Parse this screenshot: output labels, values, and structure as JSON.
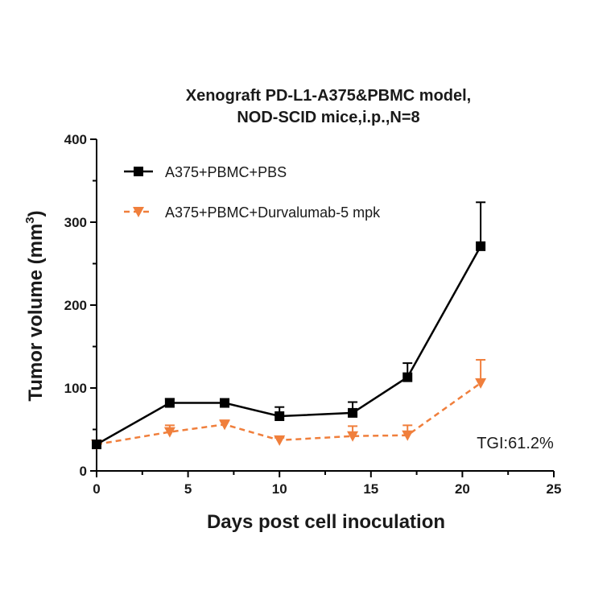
{
  "chart_data": {
    "type": "line",
    "title_line1": "Xenograft PD-L1-A375&PBMC model,",
    "title_line2": "NOD-SCID mice,i.p.,N=8",
    "xlabel": "Days post cell inoculation",
    "ylabel_main": "Tumor volume (mm",
    "ylabel_sup": "3",
    "ylabel_close": ")",
    "xlim": [
      0,
      25
    ],
    "ylim": [
      0,
      400
    ],
    "x_ticks": [
      0,
      5,
      10,
      15,
      20,
      25
    ],
    "y_ticks": [
      0,
      100,
      200,
      300,
      400
    ],
    "grid": false,
    "legend_position": "top-left",
    "series": [
      {
        "name": "A375+PBMC+PBS",
        "color": "#000000",
        "marker": "square",
        "line_style": "solid",
        "error_direction": "up",
        "x": [
          0,
          4,
          7,
          10,
          14,
          17,
          21
        ],
        "y": [
          32,
          82,
          82,
          66,
          70,
          113,
          271
        ],
        "error": [
          3,
          5,
          4,
          11,
          13,
          17,
          53
        ]
      },
      {
        "name": "A375+PBMC+Durvalumab-5 mpk",
        "color": "#F07F3C",
        "marker": "triangle-down",
        "line_style": "dashed",
        "error_direction": "up",
        "x": [
          0,
          4,
          7,
          10,
          14,
          17,
          21
        ],
        "y": [
          32,
          47,
          56,
          37,
          42,
          43,
          106
        ],
        "error": [
          2,
          8,
          5,
          3,
          12,
          12,
          28
        ]
      }
    ],
    "annotation": "TGI:61.2%"
  }
}
